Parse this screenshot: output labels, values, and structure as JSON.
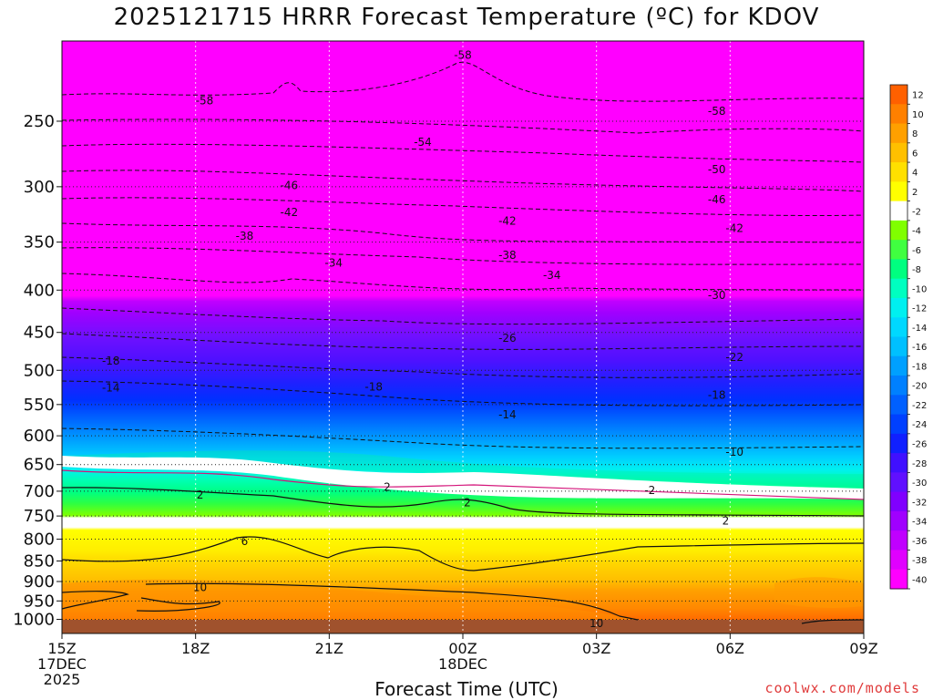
{
  "title": "2025121715 HRRR Forecast Temperature (ºC) for KDOV",
  "xlabel": "Forecast Time (UTC)",
  "credit": "coolwx.com/models",
  "chart_data": {
    "type": "heatmap",
    "title": "2025121715 HRRR Forecast Temperature (ºC) for KDOV",
    "xlabel": "Forecast Time (UTC)",
    "ylabel": "",
    "x_ticks": [
      {
        "hour": 0,
        "lines": [
          "15Z",
          "17DEC",
          "2025"
        ]
      },
      {
        "hour": 3,
        "lines": [
          "18Z"
        ]
      },
      {
        "hour": 6,
        "lines": [
          "21Z"
        ]
      },
      {
        "hour": 9,
        "lines": [
          "00Z",
          "18DEC"
        ]
      },
      {
        "hour": 12,
        "lines": [
          "03Z"
        ]
      },
      {
        "hour": 15,
        "lines": [
          "06Z"
        ]
      },
      {
        "hour": 18,
        "lines": [
          "09Z"
        ]
      }
    ],
    "xlim": [
      0,
      18
    ],
    "y_ticks": [
      250,
      300,
      350,
      400,
      450,
      500,
      550,
      600,
      650,
      700,
      750,
      800,
      850,
      900,
      950,
      1000
    ],
    "ylim": [
      1040,
      200
    ],
    "y_scale": "log",
    "grid": true,
    "colorbar": {
      "levels": [
        -40,
        -38,
        -36,
        -34,
        -32,
        -30,
        -28,
        -26,
        -24,
        -22,
        -20,
        -18,
        -16,
        -14,
        -12,
        -10,
        -8,
        -6,
        -4,
        -2,
        2,
        4,
        6,
        8,
        10,
        12
      ],
      "colors": [
        "#ff00ff",
        "#e000ff",
        "#c000ff",
        "#a000ff",
        "#8000ff",
        "#6010ff",
        "#4010ff",
        "#1020ff",
        "#0040ff",
        "#0060ff",
        "#0080ff",
        "#00a0ff",
        "#00c0ff",
        "#00d8ff",
        "#00f0f0",
        "#00ffc0",
        "#00ff80",
        "#40ff40",
        "#80ff00",
        "#ffffff",
        "#ffff00",
        "#ffe000",
        "#ffc000",
        "#ffa000",
        "#ff8000",
        "#ff6000"
      ],
      "placement": "right"
    },
    "contours": [
      {
        "label": "-58",
        "hour": 9.0,
        "p": 208
      },
      {
        "label": "-58",
        "hour": 3.2,
        "p": 236
      },
      {
        "label": "-58",
        "hour": 14.7,
        "p": 243
      },
      {
        "label": "-54",
        "hour": 8.1,
        "p": 265
      },
      {
        "label": "-50",
        "hour": 14.7,
        "p": 286
      },
      {
        "label": "-46",
        "hour": 5.1,
        "p": 299
      },
      {
        "label": "-46",
        "hour": 14.7,
        "p": 311
      },
      {
        "label": "-42",
        "hour": 5.1,
        "p": 322
      },
      {
        "label": "-42",
        "hour": 10.0,
        "p": 330
      },
      {
        "label": "-42",
        "hour": 15.1,
        "p": 337
      },
      {
        "label": "-38",
        "hour": 4.1,
        "p": 344
      },
      {
        "label": "-38",
        "hour": 10.0,
        "p": 363
      },
      {
        "label": "-34",
        "hour": 6.1,
        "p": 371
      },
      {
        "label": "-34",
        "hour": 11.0,
        "p": 384
      },
      {
        "label": "-30",
        "hour": 14.7,
        "p": 406
      },
      {
        "label": "-26",
        "hour": 10.0,
        "p": 457
      },
      {
        "label": "-22",
        "hour": 15.1,
        "p": 482
      },
      {
        "label": "-18",
        "hour": 1.1,
        "p": 487
      },
      {
        "label": "-18",
        "hour": 7.0,
        "p": 524
      },
      {
        "label": "-18",
        "hour": 14.7,
        "p": 536
      },
      {
        "label": "-14",
        "hour": 1.1,
        "p": 525
      },
      {
        "label": "-14",
        "hour": 10.0,
        "p": 566
      },
      {
        "label": "-10",
        "hour": 15.1,
        "p": 628
      },
      {
        "label": "2",
        "hour": 7.3,
        "p": 692
      },
      {
        "label": "-2",
        "hour": 13.2,
        "p": 698
      },
      {
        "label": "2",
        "hour": 3.1,
        "p": 707
      },
      {
        "label": "2",
        "hour": 9.1,
        "p": 723
      },
      {
        "label": "2",
        "hour": 14.9,
        "p": 760
      },
      {
        "label": "6",
        "hour": 4.1,
        "p": 805
      },
      {
        "label": "10",
        "hour": 3.1,
        "p": 915
      },
      {
        "label": "10",
        "hour": 12.0,
        "p": 1011
      }
    ]
  }
}
